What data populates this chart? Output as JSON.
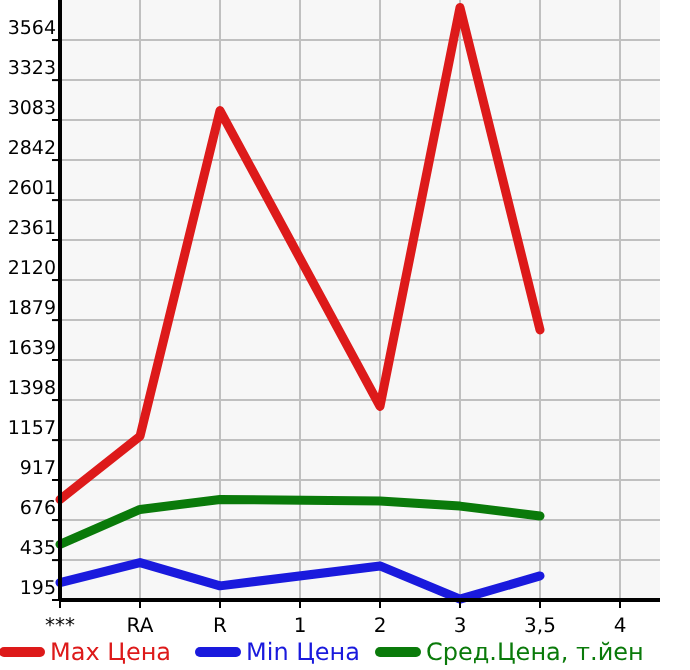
{
  "chart_data": {
    "type": "line",
    "categories": [
      "***",
      "RA",
      "R",
      "1",
      "2",
      "3",
      "3,5",
      "4"
    ],
    "series": [
      {
        "name": "Max Цена",
        "color": "#dd1a1a",
        "values": [
          800,
          1180,
          3140,
          null,
          1360,
          3760,
          1820,
          null
        ]
      },
      {
        "name": "Min Цена",
        "color": "#1a1add",
        "values": [
          300,
          420,
          280,
          null,
          400,
          200,
          340,
          null
        ]
      },
      {
        "name": "Сред.Цена, т.йен",
        "color": "#0a7a0a",
        "values": [
          530,
          740,
          800,
          null,
          790,
          760,
          700,
          null
        ]
      }
    ],
    "ylim": [
      195,
      3805
    ],
    "yticks": [
      195,
      435,
      676,
      917,
      1157,
      1398,
      1639,
      1879,
      2120,
      2361,
      2601,
      2842,
      3083,
      3323,
      3564
    ],
    "grid": true,
    "legend": "bottom",
    "marker": "none",
    "line_style": "solid"
  }
}
